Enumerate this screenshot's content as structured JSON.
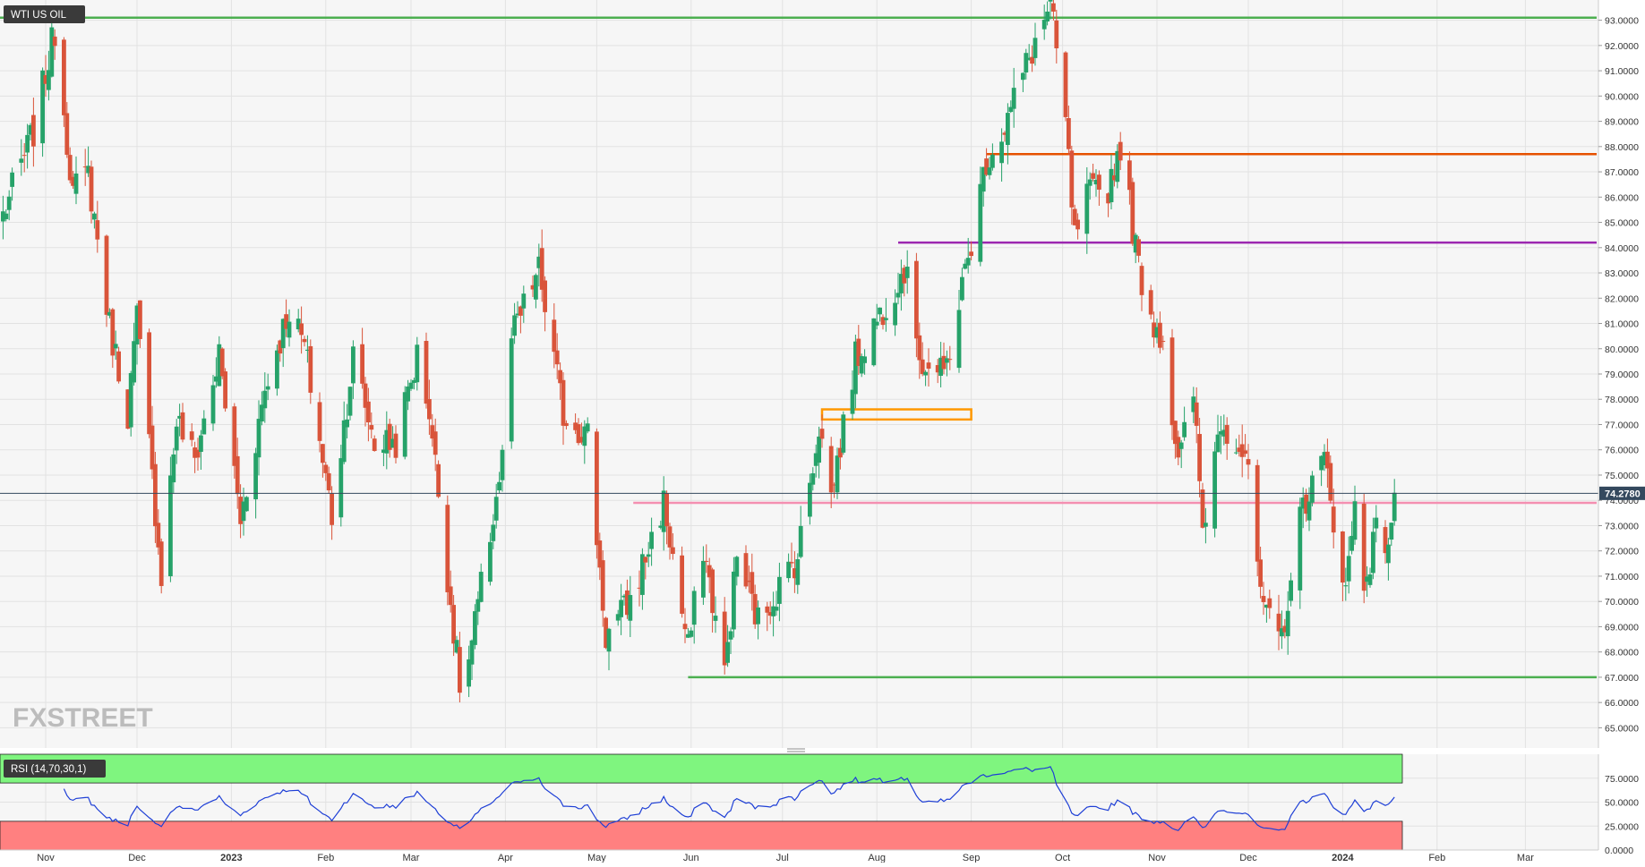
{
  "chart_data": [
    {
      "type": "candlestick",
      "title": "WTI US OIL",
      "y_axis_side": "right",
      "ylim": [
        64.2,
        93.8
      ],
      "y_ticks": [
        "65.0000",
        "66.0000",
        "67.0000",
        "68.0000",
        "69.0000",
        "70.0000",
        "71.0000",
        "72.0000",
        "73.0000",
        "74.0000",
        "75.0000",
        "76.0000",
        "77.0000",
        "78.0000",
        "79.0000",
        "80.0000",
        "81.0000",
        "82.0000",
        "83.0000",
        "84.0000",
        "85.0000",
        "86.0000",
        "87.0000",
        "88.0000",
        "89.0000",
        "90.0000",
        "91.0000",
        "92.0000",
        "93.0000"
      ],
      "x_ticks": [
        {
          "label": "Nov",
          "date": "2022-11-01"
        },
        {
          "label": "Dec",
          "date": "2022-12-01"
        },
        {
          "label": "2023",
          "date": "2023-01-01"
        },
        {
          "label": "Feb",
          "date": "2023-02-01"
        },
        {
          "label": "Mar",
          "date": "2023-03-01"
        },
        {
          "label": "Apr",
          "date": "2023-04-01"
        },
        {
          "label": "May",
          "date": "2023-05-01"
        },
        {
          "label": "Jun",
          "date": "2023-06-01"
        },
        {
          "label": "Jul",
          "date": "2023-07-01"
        },
        {
          "label": "Aug",
          "date": "2023-08-01"
        },
        {
          "label": "Sep",
          "date": "2023-09-01"
        },
        {
          "label": "Oct",
          "date": "2023-10-01"
        },
        {
          "label": "Nov",
          "date": "2023-11-01"
        },
        {
          "label": "Dec",
          "date": "2023-12-01"
        },
        {
          "label": "2024",
          "date": "2024-01-01"
        },
        {
          "label": "Feb",
          "date": "2024-02-01"
        },
        {
          "label": "Mar",
          "date": "2024-03-01"
        }
      ],
      "current_price": 74.278,
      "current_price_label": "74.2780",
      "up_color": "#26a269",
      "down_color": "#d9543a",
      "anchors": [
        {
          "date": "2022-10-18",
          "close": 85.3
        },
        {
          "date": "2022-10-28",
          "close": 88.6
        },
        {
          "date": "2022-11-04",
          "close": 92.6
        },
        {
          "date": "2022-11-10",
          "close": 86.2
        },
        {
          "date": "2022-11-15",
          "close": 86.9
        },
        {
          "date": "2022-11-22",
          "close": 80.9
        },
        {
          "date": "2022-11-28",
          "close": 77.5
        },
        {
          "date": "2022-12-01",
          "close": 81.2
        },
        {
          "date": "2022-12-09",
          "close": 71.1
        },
        {
          "date": "2022-12-14",
          "close": 77.2
        },
        {
          "date": "2022-12-20",
          "close": 75.6
        },
        {
          "date": "2022-12-28",
          "close": 79.7
        },
        {
          "date": "2023-01-04",
          "close": 73.2
        },
        {
          "date": "2023-01-12",
          "close": 78.4
        },
        {
          "date": "2023-01-20",
          "close": 81.6
        },
        {
          "date": "2023-01-25",
          "close": 80.1
        },
        {
          "date": "2023-02-03",
          "close": 73.4
        },
        {
          "date": "2023-02-10",
          "close": 79.7
        },
        {
          "date": "2023-02-17",
          "close": 76.3
        },
        {
          "date": "2023-02-24",
          "close": 76.3
        },
        {
          "date": "2023-03-03",
          "close": 79.7
        },
        {
          "date": "2023-03-07",
          "close": 77.6
        },
        {
          "date": "2023-03-17",
          "close": 66.7
        },
        {
          "date": "2023-03-20",
          "close": 67.6
        },
        {
          "date": "2023-03-31",
          "close": 75.6
        },
        {
          "date": "2023-04-03",
          "close": 80.4
        },
        {
          "date": "2023-04-12",
          "close": 83.1
        },
        {
          "date": "2023-04-20",
          "close": 77.4
        },
        {
          "date": "2023-04-28",
          "close": 76.6
        },
        {
          "date": "2023-05-04",
          "close": 68.6
        },
        {
          "date": "2023-05-12",
          "close": 70.0
        },
        {
          "date": "2023-05-23",
          "close": 73.9
        },
        {
          "date": "2023-05-31",
          "close": 68.1
        },
        {
          "date": "2023-06-05",
          "close": 72.2
        },
        {
          "date": "2023-06-12",
          "close": 67.1
        },
        {
          "date": "2023-06-16",
          "close": 71.8
        },
        {
          "date": "2023-06-23",
          "close": 69.2
        },
        {
          "date": "2023-06-30",
          "close": 70.6
        },
        {
          "date": "2023-07-06",
          "close": 71.8
        },
        {
          "date": "2023-07-13",
          "close": 77.0
        },
        {
          "date": "2023-07-17",
          "close": 74.2
        },
        {
          "date": "2023-07-25",
          "close": 79.6
        },
        {
          "date": "2023-08-03",
          "close": 81.6
        },
        {
          "date": "2023-08-10",
          "close": 83.2
        },
        {
          "date": "2023-08-16",
          "close": 79.4
        },
        {
          "date": "2023-08-23",
          "close": 78.9
        },
        {
          "date": "2023-08-31",
          "close": 83.6
        },
        {
          "date": "2023-09-06",
          "close": 87.5
        },
        {
          "date": "2023-09-12",
          "close": 88.8
        },
        {
          "date": "2023-09-19",
          "close": 91.2
        },
        {
          "date": "2023-09-27",
          "close": 93.6
        },
        {
          "date": "2023-10-02",
          "close": 88.9
        },
        {
          "date": "2023-10-05",
          "close": 84.3
        },
        {
          "date": "2023-10-09",
          "close": 86.0
        },
        {
          "date": "2023-10-16",
          "close": 86.4
        },
        {
          "date": "2023-10-20",
          "close": 88.1
        },
        {
          "date": "2023-10-26",
          "close": 83.2
        },
        {
          "date": "2023-10-31",
          "close": 81.0
        },
        {
          "date": "2023-11-03",
          "close": 80.5
        },
        {
          "date": "2023-11-08",
          "close": 75.3
        },
        {
          "date": "2023-11-13",
          "close": 78.3
        },
        {
          "date": "2023-11-16",
          "close": 72.9
        },
        {
          "date": "2023-11-22",
          "close": 77.3
        },
        {
          "date": "2023-11-30",
          "close": 75.8
        },
        {
          "date": "2023-12-06",
          "close": 69.4
        },
        {
          "date": "2023-12-12",
          "close": 68.6
        },
        {
          "date": "2023-12-19",
          "close": 73.9
        },
        {
          "date": "2023-12-26",
          "close": 75.6
        },
        {
          "date": "2024-01-02",
          "close": 70.4
        },
        {
          "date": "2024-01-05",
          "close": 73.8
        },
        {
          "date": "2024-01-08",
          "close": 70.8
        },
        {
          "date": "2024-01-12",
          "close": 72.7
        },
        {
          "date": "2024-01-16",
          "close": 72.4
        },
        {
          "date": "2024-01-18",
          "close": 74.3
        }
      ],
      "annotations": [
        {
          "kind": "hline",
          "price": 93.1,
          "from": "2022-10-17",
          "to": "2024-03-25",
          "color": "#4caf50"
        },
        {
          "kind": "hline",
          "price": 87.7,
          "from": "2023-09-06",
          "to": "2024-03-25",
          "color": "#e65100"
        },
        {
          "kind": "hline",
          "price": 84.2,
          "from": "2023-08-08",
          "to": "2024-03-25",
          "color": "#9c27b0"
        },
        {
          "kind": "hline",
          "price": 73.9,
          "from": "2023-05-13",
          "to": "2024-03-25",
          "color": "#f48fb1"
        },
        {
          "kind": "hline",
          "price": 67.0,
          "from": "2023-05-31",
          "to": "2024-03-25",
          "color": "#4caf50"
        },
        {
          "kind": "box",
          "from": "2023-07-14",
          "to": "2023-09-01",
          "price_low": 77.2,
          "price_high": 77.6,
          "color": "#ff9800"
        }
      ]
    },
    {
      "type": "line",
      "title": "RSI (14,70,30,1)",
      "ylim": [
        0,
        100
      ],
      "y_ticks": [
        "0.0000",
        "25.0000",
        "50.0000",
        "75.0000"
      ],
      "overbought": 70,
      "oversold": 30,
      "overbought_color": "#7ff57f",
      "oversold_color": "#ff8080",
      "line_color": "#1e3fd6"
    }
  ],
  "watermark": "FXSTREET"
}
